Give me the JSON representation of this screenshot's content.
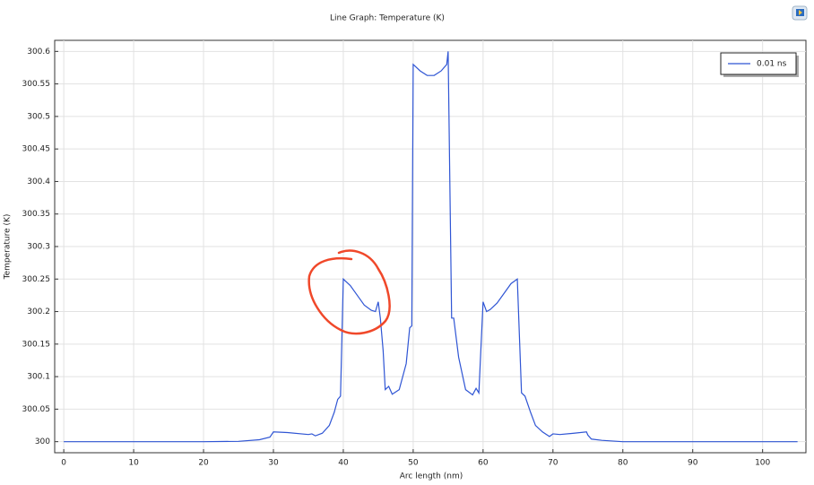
{
  "chart_data": {
    "type": "line",
    "title": "Line Graph: Temperature (K)",
    "xlabel": "Arc length (nm)",
    "ylabel": "Temperature (K)",
    "xlim": [
      -1.3,
      106.2
    ],
    "ylim": [
      299.983,
      300.617
    ],
    "xticks": [
      0,
      10,
      20,
      30,
      40,
      50,
      60,
      70,
      80,
      90,
      100
    ],
    "yticks": [
      300,
      300.05,
      300.1,
      300.15,
      300.2,
      300.25,
      300.3,
      300.35,
      300.4,
      300.45,
      300.5,
      300.55,
      300.6
    ],
    "grid": true,
    "legend": "upper right",
    "x": [
      0,
      10,
      20,
      25,
      28,
      29.5,
      30,
      32,
      35,
      35.5,
      36,
      37,
      38,
      38.7,
      39.2,
      39.6,
      40,
      41,
      42,
      43,
      44,
      44.6,
      45,
      45.3,
      45.7,
      46,
      46.5,
      47,
      48,
      49,
      49.5,
      49.8,
      50,
      51,
      52,
      53,
      54,
      54.8,
      55,
      55.5,
      55.8,
      56.5,
      57.5,
      58.5,
      59,
      59.4,
      60,
      60.5,
      61,
      62,
      63,
      64,
      64.9,
      65.5,
      66,
      66.8,
      67.5,
      68.5,
      69.5,
      70,
      71,
      73,
      74.8,
      75,
      75.5,
      77,
      80,
      90,
      105
    ],
    "series": [
      {
        "name": "0.01 ns",
        "color": "#2f55d4",
        "values": [
          300,
          300,
          300,
          300.0005,
          300.003,
          300.007,
          300.015,
          300.014,
          300.011,
          300.012,
          300.009,
          300.013,
          300.025,
          300.045,
          300.065,
          300.07,
          300.25,
          300.24,
          300.225,
          300.21,
          300.202,
          300.2,
          300.215,
          300.19,
          300.14,
          300.08,
          300.085,
          300.073,
          300.08,
          300.12,
          300.175,
          300.178,
          300.58,
          300.57,
          300.563,
          300.563,
          300.57,
          300.58,
          300.6,
          300.19,
          300.19,
          300.13,
          300.08,
          300.072,
          300.082,
          300.075,
          300.215,
          300.2,
          300.203,
          300.213,
          300.228,
          300.243,
          300.25,
          300.075,
          300.07,
          300.045,
          300.025,
          300.015,
          300.008,
          300.012,
          300.011,
          300.013,
          300.015,
          300.01,
          300.004,
          300.002,
          300,
          300,
          300
        ]
      }
    ]
  }
}
